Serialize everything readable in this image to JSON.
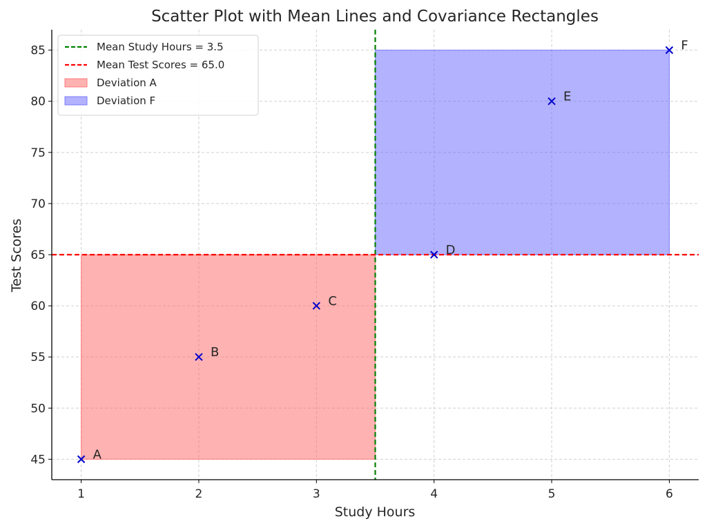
{
  "chart_data": {
    "type": "scatter",
    "title": "Scatter Plot with Mean Lines and Covariance Rectangles",
    "xlabel": "Study Hours",
    "ylabel": "Test Scores",
    "xlim": [
      0.75,
      6.25
    ],
    "ylim": [
      43,
      87
    ],
    "xticks": [
      1,
      2,
      3,
      4,
      5,
      6
    ],
    "yticks": [
      45,
      50,
      55,
      60,
      65,
      70,
      75,
      80,
      85
    ],
    "grid": true,
    "legend_position": "upper-left",
    "points": [
      {
        "label": "A",
        "x": 1,
        "y": 45
      },
      {
        "label": "B",
        "x": 2,
        "y": 55
      },
      {
        "label": "C",
        "x": 3,
        "y": 60
      },
      {
        "label": "D",
        "x": 4,
        "y": 65
      },
      {
        "label": "E",
        "x": 5,
        "y": 80
      },
      {
        "label": "F",
        "x": 6,
        "y": 85
      }
    ],
    "point_marker": "x",
    "point_color": "#0000cc",
    "mean_lines": [
      {
        "name": "Mean Study Hours = 3.5",
        "axis": "x",
        "value": 3.5,
        "color": "#008000",
        "style": "dashed"
      },
      {
        "name": "Mean Test Scores = 65.0",
        "axis": "y",
        "value": 65.0,
        "color": "#ff0000",
        "style": "dashed"
      }
    ],
    "rectangles": [
      {
        "name": "Deviation A",
        "x0": 1,
        "x1": 3.5,
        "y0": 45,
        "y1": 65,
        "color": "#ff6666",
        "opacity": 0.5
      },
      {
        "name": "Deviation F",
        "x0": 3.5,
        "x1": 6,
        "y0": 65,
        "y1": 85,
        "color": "#6666ff",
        "opacity": 0.5
      }
    ]
  }
}
